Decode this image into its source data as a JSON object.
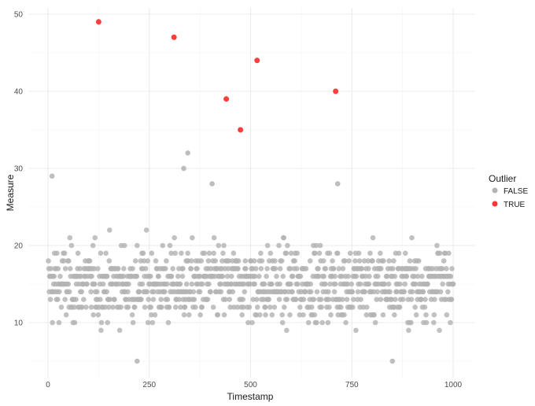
{
  "chart_data": {
    "type": "scatter",
    "title": "",
    "xlabel": "Timestamp",
    "ylabel": "Measure",
    "xlim": [
      -45,
      1045
    ],
    "ylim": [
      3.3,
      51.2
    ],
    "x_ticks": [
      0,
      250,
      500,
      750,
      1000
    ],
    "y_ticks": [
      10,
      20,
      30,
      40,
      50
    ],
    "grid": true,
    "legend": {
      "title": "Outlier",
      "position": "right",
      "entries": [
        {
          "label": "FALSE",
          "color": "#b3b3b3"
        },
        {
          "label": "TRUE",
          "color": "#ff3333"
        }
      ]
    },
    "series": [
      {
        "name": "FALSE",
        "color": "#b3b3b3",
        "description": "~1000 points, x from 1 to 1000, y mostly between 5 and 26 (centered ~15), a few up to 28-32",
        "notable_points": [
          {
            "x": 10,
            "y": 29
          },
          {
            "x": 335,
            "y": 30
          },
          {
            "x": 345,
            "y": 32
          },
          {
            "x": 405,
            "y": 28
          },
          {
            "x": 715,
            "y": 28
          },
          {
            "x": 220,
            "y": 5
          },
          {
            "x": 850,
            "y": 5
          }
        ]
      },
      {
        "name": "TRUE",
        "color": "#ff3333",
        "points": [
          {
            "x": 125,
            "y": 49
          },
          {
            "x": 311,
            "y": 47
          },
          {
            "x": 440,
            "y": 39
          },
          {
            "x": 475,
            "y": 35
          },
          {
            "x": 516,
            "y": 44
          },
          {
            "x": 710,
            "y": 40
          }
        ]
      }
    ]
  },
  "axes": {
    "x_title": "Timestamp",
    "y_title": "Measure",
    "x_tick_labels": [
      "0",
      "250",
      "500",
      "750",
      "1000"
    ],
    "y_tick_labels": [
      "10",
      "20",
      "30",
      "40",
      "50"
    ]
  },
  "legend": {
    "title": "Outlier",
    "false_label": "FALSE",
    "true_label": "TRUE"
  }
}
